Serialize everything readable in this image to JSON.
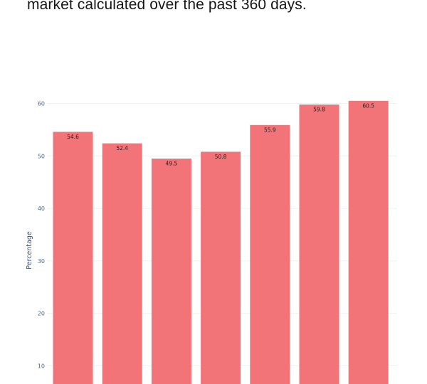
{
  "caption": {
    "text": "market calculated over the past 360 days."
  },
  "colors": {
    "bar": "#f27479",
    "grid": "#eef1f6",
    "axis_text": "#506784"
  },
  "chart_data": {
    "type": "bar",
    "title": "",
    "xlabel": "",
    "ylabel": "Percentage",
    "ylim": [
      0,
      64
    ],
    "yticks": [
      10,
      20,
      30,
      40,
      50,
      60
    ],
    "grid": true,
    "show_data_labels": true,
    "values": [
      54.6,
      52.4,
      49.5,
      50.8,
      55.9,
      59.8,
      60.5
    ]
  }
}
